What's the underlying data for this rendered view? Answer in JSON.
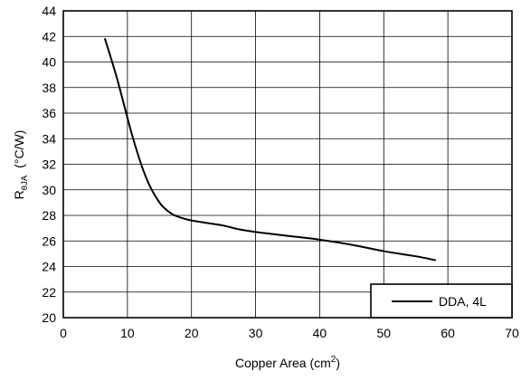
{
  "chart_data": {
    "type": "line",
    "xlabel_main": "Copper Area (cm",
    "xlabel_sup": "2",
    "xlabel_close": ")",
    "ylabel_main": "R",
    "ylabel_sub": "θJA",
    "ylabel_unit": "(°C/W)",
    "xlim": [
      0,
      70
    ],
    "ylim": [
      20,
      44
    ],
    "xticks": [
      0,
      10,
      20,
      30,
      40,
      50,
      60,
      70
    ],
    "yticks": [
      20,
      22,
      24,
      26,
      28,
      30,
      32,
      34,
      36,
      38,
      40,
      42,
      44
    ],
    "grid": true,
    "legend_position": "bottom-right",
    "series": [
      {
        "name": "DDA, 4L",
        "color": "#000000",
        "x": [
          6.5,
          7.5,
          8.5,
          9.5,
          10.5,
          11.5,
          12.5,
          13.5,
          14.5,
          15.5,
          17,
          18.5,
          20,
          22.5,
          25,
          27.5,
          30,
          32.5,
          35,
          40,
          45,
          50,
          55,
          58
        ],
        "y": [
          41.8,
          40.2,
          38.5,
          36.6,
          34.7,
          33.0,
          31.5,
          30.3,
          29.4,
          28.7,
          28.1,
          27.8,
          27.6,
          27.4,
          27.2,
          26.9,
          26.7,
          26.55,
          26.4,
          26.1,
          25.7,
          25.2,
          24.8,
          24.5
        ]
      }
    ]
  }
}
